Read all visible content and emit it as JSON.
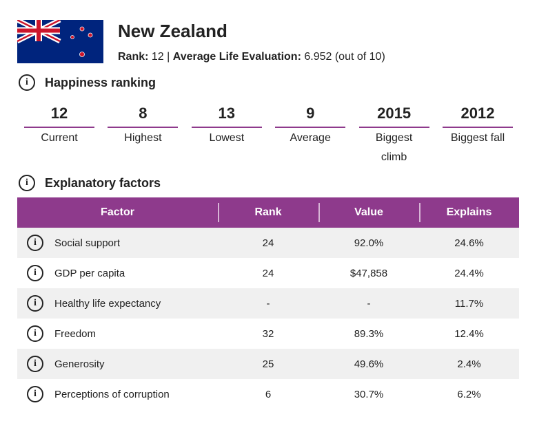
{
  "header": {
    "title": "New Zealand",
    "rank_label": "Rank:",
    "rank": "12",
    "separator": "|",
    "evaluation_label": "Average Life Evaluation:",
    "evaluation": "6.952",
    "evaluation_note": "(out of 10)"
  },
  "ranking": {
    "heading": "Happiness ranking",
    "stats": [
      {
        "value": "12",
        "label": "Current"
      },
      {
        "value": "8",
        "label": "Highest"
      },
      {
        "value": "13",
        "label": "Lowest"
      },
      {
        "value": "9",
        "label": "Average"
      },
      {
        "value": "2015",
        "label": "Biggest climb"
      },
      {
        "value": "2012",
        "label": "Biggest fall"
      }
    ]
  },
  "factors": {
    "heading": "Explanatory factors",
    "columns": [
      "Factor",
      "Rank",
      "Value",
      "Explains"
    ],
    "rows": [
      [
        "Social support",
        "24",
        "92.0%",
        "24.6%"
      ],
      [
        "GDP per capita",
        "24",
        "$47,858",
        "24.4%"
      ],
      [
        "Healthy life expectancy",
        "-",
        "-",
        "11.7%"
      ],
      [
        "Freedom",
        "32",
        "89.3%",
        "12.4%"
      ],
      [
        "Generosity",
        "25",
        "49.6%",
        "2.4%"
      ],
      [
        "Perceptions of corruption",
        "6",
        "30.7%",
        "6.2%"
      ]
    ]
  }
}
